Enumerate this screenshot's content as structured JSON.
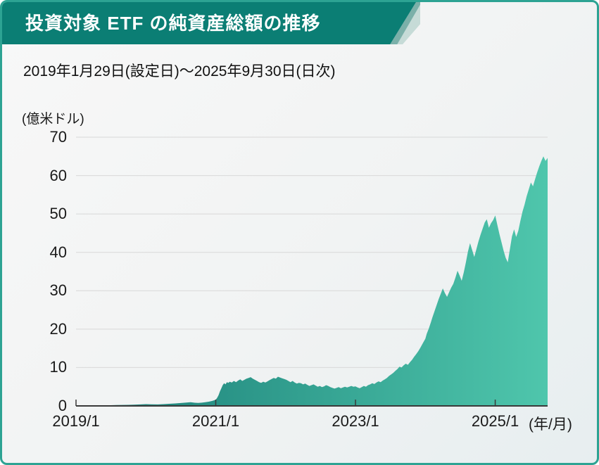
{
  "header": {
    "title": "投資対象 ETF の純資産総額の推移"
  },
  "subtitle": "2019年1月29日(設定日)〜2025年9月30日(日次)",
  "colors": {
    "frame_border": "#2da393",
    "ribbon": "#0b7e74",
    "ribbon_fold_mid": "#7bb0a9",
    "ribbon_fold_light": "#c6dbd7",
    "gridline": "#d8d8d8",
    "axis": "#3a3a3a",
    "area_gradient_left": "#1a7e77",
    "area_gradient_right": "#4fc6ac"
  },
  "chart_data": {
    "type": "area",
    "title": "投資対象 ETF の純資産総額の推移",
    "subtitle": "2019年1月29日(設定日)〜2025年9月30日(日次)",
    "unit_label": "(億米ドル)",
    "xlabel_suffix": "(年/月)",
    "ylim": [
      0,
      70
    ],
    "yticks": [
      0,
      10,
      20,
      30,
      40,
      50,
      60,
      70
    ],
    "x_domain": [
      2019.0,
      2025.75
    ],
    "xticks": [
      {
        "t": 2019.0,
        "label": "2019/1"
      },
      {
        "t": 2021.0,
        "label": "2021/1"
      },
      {
        "t": 2023.0,
        "label": "2023/1"
      },
      {
        "t": 2025.0,
        "label": "2025/1"
      }
    ],
    "grid": "horizontal",
    "legend": "none",
    "series": [
      {
        "name": "純資産総額",
        "points": [
          [
            2019.08,
            0.05
          ],
          [
            2019.16,
            0.08
          ],
          [
            2019.25,
            0.1
          ],
          [
            2019.33,
            0.13
          ],
          [
            2019.42,
            0.15
          ],
          [
            2019.5,
            0.18
          ],
          [
            2019.58,
            0.22
          ],
          [
            2019.67,
            0.25
          ],
          [
            2019.75,
            0.28
          ],
          [
            2019.83,
            0.32
          ],
          [
            2019.92,
            0.38
          ],
          [
            2020.0,
            0.45
          ],
          [
            2020.08,
            0.42
          ],
          [
            2020.17,
            0.38
          ],
          [
            2020.25,
            0.45
          ],
          [
            2020.33,
            0.55
          ],
          [
            2020.42,
            0.65
          ],
          [
            2020.5,
            0.75
          ],
          [
            2020.58,
            0.88
          ],
          [
            2020.64,
            0.95
          ],
          [
            2020.7,
            0.82
          ],
          [
            2020.75,
            0.78
          ],
          [
            2020.8,
            0.85
          ],
          [
            2020.85,
            0.95
          ],
          [
            2020.9,
            1.1
          ],
          [
            2020.95,
            1.3
          ],
          [
            2021.0,
            1.6
          ],
          [
            2021.02,
            2.1
          ],
          [
            2021.04,
            2.8
          ],
          [
            2021.06,
            3.8
          ],
          [
            2021.08,
            4.6
          ],
          [
            2021.1,
            5.4
          ],
          [
            2021.12,
            5.9
          ],
          [
            2021.14,
            5.6
          ],
          [
            2021.16,
            6.2
          ],
          [
            2021.18,
            6.0
          ],
          [
            2021.2,
            6.3
          ],
          [
            2021.23,
            6.1
          ],
          [
            2021.26,
            6.5
          ],
          [
            2021.29,
            6.2
          ],
          [
            2021.32,
            6.6
          ],
          [
            2021.35,
            6.9
          ],
          [
            2021.38,
            6.5
          ],
          [
            2021.41,
            6.8
          ],
          [
            2021.44,
            7.1
          ],
          [
            2021.47,
            7.3
          ],
          [
            2021.5,
            7.5
          ],
          [
            2021.53,
            7.1
          ],
          [
            2021.56,
            6.8
          ],
          [
            2021.59,
            6.5
          ],
          [
            2021.62,
            6.2
          ],
          [
            2021.65,
            6.0
          ],
          [
            2021.68,
            6.3
          ],
          [
            2021.71,
            6.1
          ],
          [
            2021.74,
            6.4
          ],
          [
            2021.77,
            6.7
          ],
          [
            2021.8,
            7.0
          ],
          [
            2021.83,
            7.3
          ],
          [
            2021.86,
            7.1
          ],
          [
            2021.89,
            7.6
          ],
          [
            2021.92,
            7.4
          ],
          [
            2021.95,
            7.2
          ],
          [
            2021.98,
            7.0
          ],
          [
            2022.01,
            6.8
          ],
          [
            2022.04,
            6.5
          ],
          [
            2022.07,
            6.2
          ],
          [
            2022.1,
            6.5
          ],
          [
            2022.13,
            6.1
          ],
          [
            2022.16,
            5.8
          ],
          [
            2022.19,
            6.0
          ],
          [
            2022.22,
            5.9
          ],
          [
            2022.25,
            5.6
          ],
          [
            2022.28,
            5.8
          ],
          [
            2022.31,
            5.5
          ],
          [
            2022.34,
            5.2
          ],
          [
            2022.37,
            5.4
          ],
          [
            2022.4,
            5.6
          ],
          [
            2022.43,
            5.3
          ],
          [
            2022.46,
            5.0
          ],
          [
            2022.49,
            5.2
          ],
          [
            2022.52,
            4.9
          ],
          [
            2022.55,
            5.1
          ],
          [
            2022.58,
            5.4
          ],
          [
            2022.61,
            5.2
          ],
          [
            2022.64,
            4.9
          ],
          [
            2022.67,
            4.7
          ],
          [
            2022.7,
            4.5
          ],
          [
            2022.73,
            4.7
          ],
          [
            2022.76,
            4.9
          ],
          [
            2022.79,
            4.6
          ],
          [
            2022.82,
            4.8
          ],
          [
            2022.85,
            5.0
          ],
          [
            2022.88,
            4.8
          ],
          [
            2022.91,
            5.0
          ],
          [
            2022.94,
            5.2
          ],
          [
            2022.97,
            5.0
          ],
          [
            2023.0,
            5.1
          ],
          [
            2023.03,
            4.8
          ],
          [
            2023.06,
            4.6
          ],
          [
            2023.09,
            4.9
          ],
          [
            2023.12,
            5.2
          ],
          [
            2023.15,
            5.0
          ],
          [
            2023.18,
            5.4
          ],
          [
            2023.21,
            5.6
          ],
          [
            2023.24,
            5.9
          ],
          [
            2023.27,
            5.7
          ],
          [
            2023.3,
            6.1
          ],
          [
            2023.33,
            6.4
          ],
          [
            2023.36,
            6.2
          ],
          [
            2023.39,
            6.6
          ],
          [
            2023.42,
            6.9
          ],
          [
            2023.45,
            7.3
          ],
          [
            2023.48,
            7.8
          ],
          [
            2023.51,
            8.2
          ],
          [
            2023.54,
            8.6
          ],
          [
            2023.57,
            9.1
          ],
          [
            2023.6,
            9.6
          ],
          [
            2023.63,
            10.2
          ],
          [
            2023.66,
            10.0
          ],
          [
            2023.69,
            10.6
          ],
          [
            2023.72,
            11.0
          ],
          [
            2023.75,
            10.7
          ],
          [
            2023.78,
            11.4
          ],
          [
            2023.81,
            12.0
          ],
          [
            2023.84,
            12.8
          ],
          [
            2023.87,
            13.5
          ],
          [
            2023.9,
            14.3
          ],
          [
            2023.93,
            15.2
          ],
          [
            2023.96,
            16.2
          ],
          [
            2024.0,
            17.5
          ],
          [
            2024.02,
            18.8
          ],
          [
            2024.05,
            20.2
          ],
          [
            2024.08,
            21.8
          ],
          [
            2024.1,
            23.0
          ],
          [
            2024.13,
            24.6
          ],
          [
            2024.16,
            26.2
          ],
          [
            2024.19,
            27.8
          ],
          [
            2024.22,
            29.2
          ],
          [
            2024.25,
            30.6
          ],
          [
            2024.28,
            29.4
          ],
          [
            2024.31,
            28.4
          ],
          [
            2024.34,
            29.6
          ],
          [
            2024.37,
            30.8
          ],
          [
            2024.4,
            31.8
          ],
          [
            2024.43,
            33.4
          ],
          [
            2024.46,
            35.2
          ],
          [
            2024.49,
            34.0
          ],
          [
            2024.52,
            32.6
          ],
          [
            2024.55,
            34.8
          ],
          [
            2024.58,
            37.4
          ],
          [
            2024.61,
            40.2
          ],
          [
            2024.64,
            42.4
          ],
          [
            2024.67,
            40.6
          ],
          [
            2024.7,
            38.8
          ],
          [
            2024.73,
            40.8
          ],
          [
            2024.76,
            42.8
          ],
          [
            2024.79,
            44.6
          ],
          [
            2024.82,
            46.2
          ],
          [
            2024.85,
            47.8
          ],
          [
            2024.88,
            48.6
          ],
          [
            2024.91,
            46.4
          ],
          [
            2024.94,
            47.6
          ],
          [
            2024.97,
            48.4
          ],
          [
            2025.0,
            49.6
          ],
          [
            2025.03,
            47.2
          ],
          [
            2025.06,
            44.8
          ],
          [
            2025.09,
            42.6
          ],
          [
            2025.12,
            40.4
          ],
          [
            2025.15,
            38.6
          ],
          [
            2025.18,
            37.4
          ],
          [
            2025.21,
            40.8
          ],
          [
            2025.24,
            44.2
          ],
          [
            2025.27,
            46.0
          ],
          [
            2025.3,
            44.0
          ],
          [
            2025.33,
            45.6
          ],
          [
            2025.36,
            48.2
          ],
          [
            2025.39,
            50.6
          ],
          [
            2025.42,
            52.4
          ],
          [
            2025.45,
            54.6
          ],
          [
            2025.48,
            56.4
          ],
          [
            2025.51,
            58.2
          ],
          [
            2025.54,
            57.2
          ],
          [
            2025.57,
            59.0
          ],
          [
            2025.6,
            60.8
          ],
          [
            2025.63,
            62.4
          ],
          [
            2025.66,
            63.8
          ],
          [
            2025.69,
            65.0
          ],
          [
            2025.72,
            63.8
          ],
          [
            2025.75,
            64.6
          ]
        ]
      }
    ]
  }
}
